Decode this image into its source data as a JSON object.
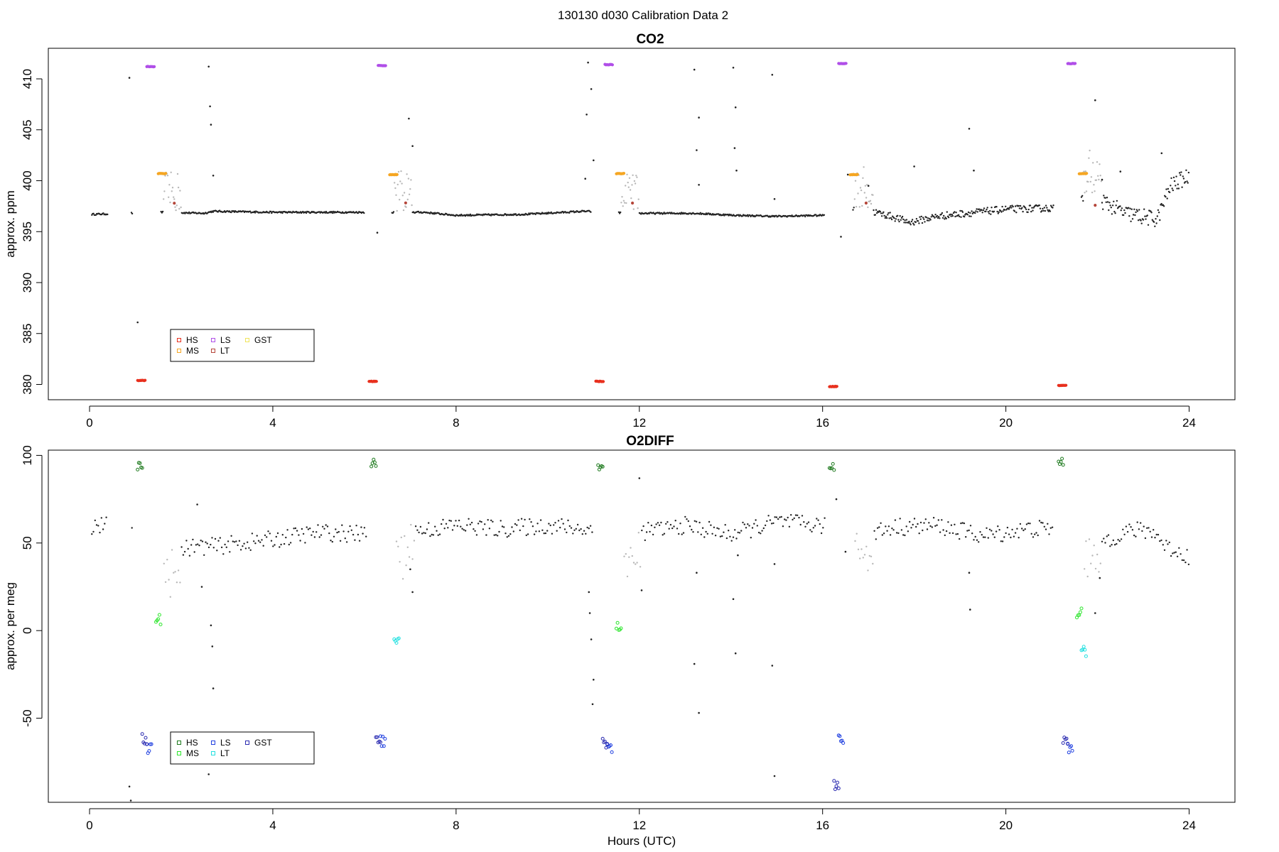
{
  "suptitle": "130130   d030   Calibration Data 2",
  "chart_data": [
    {
      "type": "scatter",
      "title": "CO2",
      "xlabel": "",
      "ylabel": "approx. ppm",
      "xlim": [
        -0.9,
        25.0
      ],
      "ylim": [
        378.5,
        413.0
      ],
      "xticks": [
        "0",
        "4",
        "8",
        "12",
        "16",
        "20",
        "24"
      ],
      "yticks": [
        "380",
        "385",
        "390",
        "395",
        "400",
        "405",
        "410"
      ],
      "legend": {
        "placement": "bottom-left",
        "entries": [
          {
            "label": "HS",
            "color": "#e8301e"
          },
          {
            "label": "MS",
            "color": "#f5a623"
          },
          {
            "label": "LS",
            "color": "#b04ee8"
          },
          {
            "label": "LT",
            "color": "#b5463a"
          },
          {
            "label": "GST",
            "color": "#f0e45a"
          }
        ]
      },
      "baseline": [
        [
          0.05,
          396.7
        ],
        [
          1.6,
          396.9
        ],
        [
          2.5,
          396.8
        ],
        [
          2.7,
          397.0
        ],
        [
          4.0,
          396.9
        ],
        [
          5.5,
          396.9
        ],
        [
          6.05,
          396.9
        ],
        [
          7.3,
          396.9
        ],
        [
          8.0,
          396.6
        ],
        [
          9.5,
          396.7
        ],
        [
          10.8,
          397.0
        ],
        [
          11.8,
          396.8
        ],
        [
          13.2,
          396.8
        ],
        [
          14.1,
          396.6
        ],
        [
          15.0,
          396.5
        ],
        [
          16.0,
          396.6
        ],
        [
          16.6,
          397.5
        ],
        [
          17.5,
          396.5
        ],
        [
          17.9,
          395.9
        ],
        [
          18.5,
          396.5
        ],
        [
          20.0,
          397.2
        ],
        [
          21.0,
          397.3
        ],
        [
          21.9,
          398.5
        ],
        [
          22.6,
          396.8
        ],
        [
          23.3,
          396.2
        ],
        [
          23.6,
          399.5
        ],
        [
          24.0,
          400.5
        ]
      ],
      "calibrations": [
        {
          "start": 1.0,
          "HS": 380.4,
          "LS": 411.2,
          "MS": 400.7,
          "LT": 397.8
        },
        {
          "start": 6.05,
          "HS": 380.3,
          "LS": 411.3,
          "MS": 400.6,
          "LT": 397.8
        },
        {
          "start": 11.0,
          "HS": 380.3,
          "LS": 411.4,
          "MS": 400.7,
          "LT": 397.8
        },
        {
          "start": 16.1,
          "HS": 379.8,
          "LS": 411.5,
          "MS": 400.6,
          "LT": 397.8
        },
        {
          "start": 21.1,
          "HS": 379.9,
          "LS": 411.5,
          "MS": 400.7,
          "LT": 397.6
        }
      ],
      "spikes": [
        [
          0.87,
          410.1
        ],
        [
          1.05,
          386.1
        ],
        [
          2.6,
          411.2
        ],
        [
          2.63,
          407.3
        ],
        [
          2.65,
          405.5
        ],
        [
          2.7,
          400.5
        ],
        [
          6.28,
          394.9
        ],
        [
          6.97,
          406.1
        ],
        [
          7.05,
          403.4
        ],
        [
          10.88,
          411.6
        ],
        [
          10.95,
          409.0
        ],
        [
          10.85,
          406.5
        ],
        [
          11.0,
          402.0
        ],
        [
          10.82,
          400.2
        ],
        [
          13.2,
          410.9
        ],
        [
          13.3,
          406.2
        ],
        [
          13.25,
          403.0
        ],
        [
          13.3,
          399.6
        ],
        [
          14.05,
          411.1
        ],
        [
          14.1,
          407.2
        ],
        [
          14.08,
          403.2
        ],
        [
          14.12,
          401.0
        ],
        [
          14.9,
          410.4
        ],
        [
          14.95,
          398.2
        ],
        [
          16.4,
          394.5
        ],
        [
          16.55,
          400.6
        ],
        [
          17.0,
          399.5
        ],
        [
          18.0,
          401.4
        ],
        [
          19.2,
          405.1
        ],
        [
          19.3,
          401.0
        ],
        [
          21.95,
          407.9
        ],
        [
          22.1,
          400.1
        ],
        [
          22.5,
          400.9
        ],
        [
          23.4,
          402.7
        ]
      ]
    },
    {
      "type": "scatter",
      "title": "O2DIFF",
      "xlabel": "Hours (UTC)",
      "ylabel": "approx. per meg",
      "xlim": [
        -0.9,
        25.0
      ],
      "ylim": [
        -98,
        103
      ],
      "xticks": [
        "0",
        "4",
        "8",
        "12",
        "16",
        "20",
        "24"
      ],
      "yticks": [
        "-50",
        "0",
        "50",
        "100"
      ],
      "legend": {
        "placement": "bottom-left",
        "entries": [
          {
            "label": "HS",
            "color": "#1e7a1e"
          },
          {
            "label": "MS",
            "color": "#2ee62e"
          },
          {
            "label": "LS",
            "color": "#1f3fe0"
          },
          {
            "label": "LT",
            "color": "#22e0e0"
          },
          {
            "label": "GST",
            "color": "#2a2ab0"
          }
        ]
      },
      "baseline": [
        [
          0.05,
          60
        ],
        [
          0.4,
          60
        ],
        [
          1.7,
          45
        ],
        [
          2.3,
          48
        ],
        [
          2.7,
          48
        ],
        [
          4.0,
          52
        ],
        [
          5.0,
          56
        ],
        [
          6.0,
          55
        ],
        [
          7.2,
          57
        ],
        [
          8.0,
          60
        ],
        [
          9.0,
          58
        ],
        [
          10.0,
          60
        ],
        [
          10.8,
          58
        ],
        [
          12.0,
          56
        ],
        [
          13.0,
          60
        ],
        [
          14.0,
          55
        ],
        [
          15.0,
          62
        ],
        [
          16.0,
          60
        ],
        [
          16.6,
          52
        ],
        [
          17.5,
          59
        ],
        [
          18.5,
          60
        ],
        [
          19.5,
          54
        ],
        [
          20.5,
          58
        ],
        [
          21.0,
          58
        ],
        [
          22.2,
          52
        ],
        [
          22.7,
          57
        ],
        [
          23.2,
          57
        ],
        [
          23.5,
          48
        ],
        [
          24.0,
          42
        ]
      ],
      "calibrations": [
        {
          "start": 1.0,
          "HS": 94,
          "MS": 6,
          "LS": -67,
          "LT": null,
          "GST": -62
        },
        {
          "start": 6.1,
          "HS": 96,
          "MS": null,
          "LS": -63,
          "LT": -7,
          "GST": -63
        },
        {
          "start": 11.05,
          "HS": 94,
          "MS": 2,
          "LS": -67,
          "LT": null,
          "GST": -64
        },
        {
          "start": 16.1,
          "HS": 94,
          "MS": null,
          "LS": -62,
          "LT": null,
          "GST": -88
        },
        {
          "start": 21.1,
          "HS": 97,
          "MS": 10,
          "LS": -67,
          "LT": -12,
          "GST": -62
        }
      ],
      "spikes": [
        [
          0.87,
          -89
        ],
        [
          0.9,
          -97
        ],
        [
          2.6,
          -82
        ],
        [
          2.65,
          3
        ],
        [
          2.68,
          -9
        ],
        [
          2.7,
          -33
        ],
        [
          2.35,
          72
        ],
        [
          2.45,
          25
        ],
        [
          7.0,
          35
        ],
        [
          7.05,
          22
        ],
        [
          10.9,
          22
        ],
        [
          10.92,
          10
        ],
        [
          10.95,
          -5
        ],
        [
          11.0,
          -28
        ],
        [
          10.98,
          -42
        ],
        [
          12.0,
          87
        ],
        [
          12.05,
          23
        ],
        [
          13.2,
          -19
        ],
        [
          13.25,
          33
        ],
        [
          13.3,
          -47
        ],
        [
          14.05,
          18
        ],
        [
          14.1,
          -13
        ],
        [
          14.15,
          43
        ],
        [
          14.9,
          -20
        ],
        [
          14.95,
          -83
        ],
        [
          14.95,
          38
        ],
        [
          16.3,
          75
        ],
        [
          16.5,
          45
        ],
        [
          19.2,
          33
        ],
        [
          19.22,
          12
        ],
        [
          21.95,
          10
        ],
        [
          22.05,
          30
        ]
      ]
    }
  ]
}
